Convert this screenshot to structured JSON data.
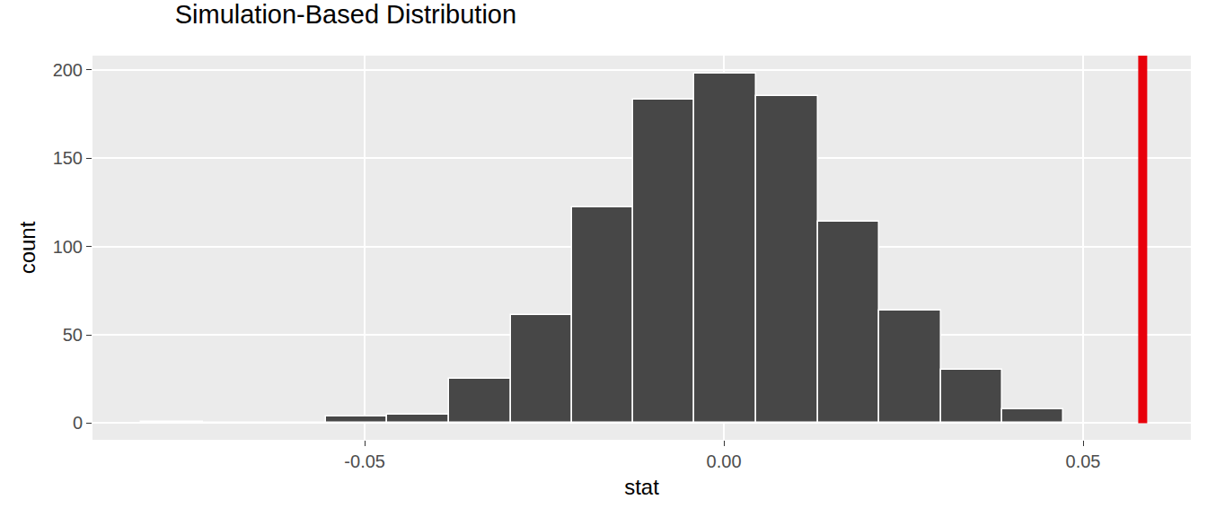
{
  "chart_data": {
    "type": "histogram",
    "title": "Simulation-Based Distribution",
    "x_label": "stat",
    "y_label": "count",
    "bins": [
      -0.0811,
      -0.0725,
      -0.064,
      -0.0554,
      -0.0469,
      -0.0383,
      -0.0297,
      -0.0212,
      -0.0126,
      -0.0041,
      0.0045,
      0.0131,
      0.0216,
      0.0302,
      0.0387,
      0.0473
    ],
    "values": [
      1,
      0,
      0,
      4,
      5,
      25,
      61,
      122,
      183,
      198,
      185,
      114,
      64,
      30,
      8
    ],
    "colors": [
      "#f6cfd3",
      "#474747",
      "#474747",
      "#474747",
      "#474747",
      "#474747",
      "#474747",
      "#474747",
      "#474747",
      "#474747",
      "#474747",
      "#474747",
      "#474747",
      "#474747",
      "#474747"
    ],
    "reference_line": {
      "x": 0.0583,
      "color": "#e8000b"
    },
    "xlim": [
      -0.0879,
      0.065
    ],
    "xticks": [
      -0.05,
      {
        "value": 0,
        "label": "0.00"
      },
      0.05
    ],
    "ylim": [
      -9.4,
      208
    ],
    "yticks": [
      0,
      50,
      100,
      150,
      200
    ],
    "grid": true
  }
}
